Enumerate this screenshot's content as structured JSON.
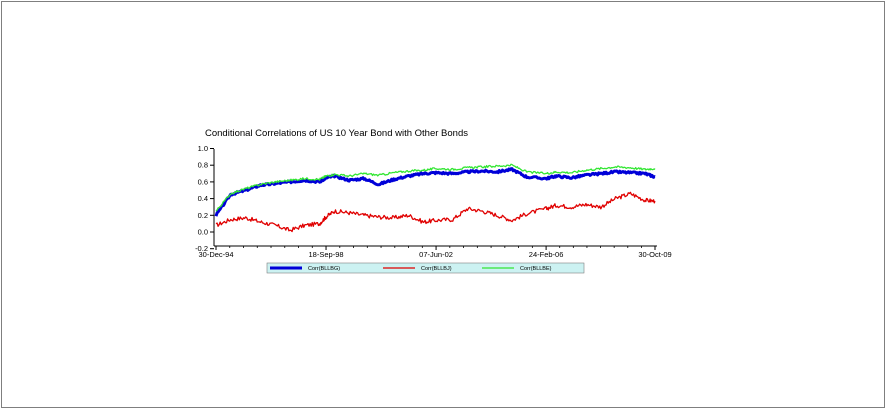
{
  "chart_data": {
    "type": "line",
    "title": "Conditional Correlations of US 10 Year Bond with Other Bonds",
    "xlabel": "",
    "ylabel": "",
    "x_ticks": [
      "30-Dec-94",
      "18-Sep-98",
      "07-Jun-02",
      "24-Feb-06",
      "30-Oct-09"
    ],
    "x": [
      "30-Dec-94",
      "30-Jun-95",
      "31-Dec-95",
      "30-Jun-96",
      "31-Dec-96",
      "30-Jun-97",
      "31-Dec-97",
      "30-Jun-98",
      "18-Sep-98",
      "31-Dec-98",
      "30-Jun-99",
      "31-Dec-99",
      "30-Jun-00",
      "31-Dec-00",
      "30-Jun-01",
      "31-Dec-01",
      "07-Jun-02",
      "31-Dec-02",
      "30-Jun-03",
      "31-Dec-03",
      "30-Jun-04",
      "31-Dec-04",
      "30-Jun-05",
      "24-Feb-06",
      "30-Jun-06",
      "31-Dec-06",
      "30-Jun-07",
      "31-Dec-07",
      "30-Jun-08",
      "31-Dec-08",
      "30-Jun-09",
      "30-Oct-09"
    ],
    "ylim": [
      -0.2,
      1.0
    ],
    "y_ticks": [
      "-0.2",
      "0.0",
      "0.2",
      "0.4",
      "0.6",
      "0.8",
      "1.0"
    ],
    "legend_position": "bottom",
    "series": [
      {
        "name": "Corr(BLLBG)",
        "color": "#0000d8",
        "values": [
          0.2,
          0.45,
          0.5,
          0.56,
          0.58,
          0.6,
          0.62,
          0.6,
          0.65,
          0.67,
          0.62,
          0.64,
          0.57,
          0.63,
          0.67,
          0.7,
          0.71,
          0.7,
          0.72,
          0.73,
          0.72,
          0.75,
          0.66,
          0.64,
          0.67,
          0.65,
          0.68,
          0.7,
          0.72,
          0.71,
          0.7,
          0.66
        ]
      },
      {
        "name": "Corr(BLLBJ)",
        "color": "#e00000",
        "values": [
          0.08,
          0.15,
          0.17,
          0.12,
          0.08,
          0.02,
          0.08,
          0.1,
          0.18,
          0.25,
          0.23,
          0.2,
          0.18,
          0.17,
          0.2,
          0.12,
          0.14,
          0.15,
          0.28,
          0.25,
          0.2,
          0.14,
          0.22,
          0.28,
          0.32,
          0.3,
          0.33,
          0.3,
          0.4,
          0.46,
          0.38,
          0.37
        ]
      },
      {
        "name": "Corr(BLLBE)",
        "color": "#33e633",
        "values": [
          0.25,
          0.46,
          0.52,
          0.57,
          0.6,
          0.62,
          0.64,
          0.63,
          0.67,
          0.69,
          0.67,
          0.7,
          0.68,
          0.71,
          0.73,
          0.74,
          0.76,
          0.75,
          0.77,
          0.78,
          0.79,
          0.8,
          0.72,
          0.7,
          0.72,
          0.71,
          0.74,
          0.76,
          0.78,
          0.77,
          0.75,
          0.76
        ]
      }
    ]
  },
  "colors": {
    "legend_background": "#ccf2f2",
    "axis": "#000000",
    "frame_border": "#7f7f7f"
  }
}
